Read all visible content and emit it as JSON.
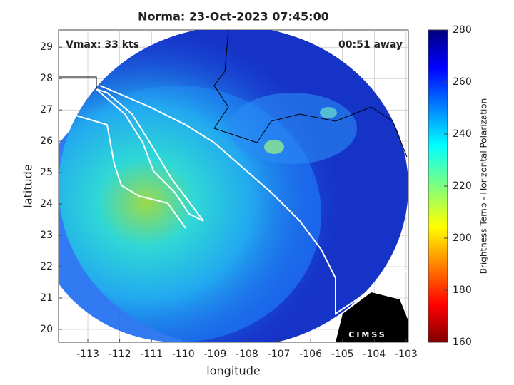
{
  "chart_data": {
    "type": "map",
    "title": "Norma: 23-Oct-2023 07:45:00",
    "annotations": [
      "Vmax: 33 kts",
      "00:51 away"
    ],
    "x_label": "longitude",
    "y_label": "latitude",
    "xlim": [
      -113.92,
      -102.93
    ],
    "xticks": [
      -113,
      -112,
      -111,
      -110,
      -109,
      -108,
      -107,
      -106,
      -105,
      -104,
      -103
    ],
    "ylim": [
      19.59,
      29.55
    ],
    "yticks": [
      20,
      21,
      22,
      23,
      24,
      25,
      26,
      27,
      28,
      29
    ],
    "grid": true,
    "colorbar": {
      "label": "Brightness Temp - Horizontal Polarization",
      "lim": [
        160,
        280
      ],
      "ticks": [
        160,
        180,
        200,
        220,
        240,
        260,
        280
      ]
    },
    "logo": "CIMSS"
  }
}
